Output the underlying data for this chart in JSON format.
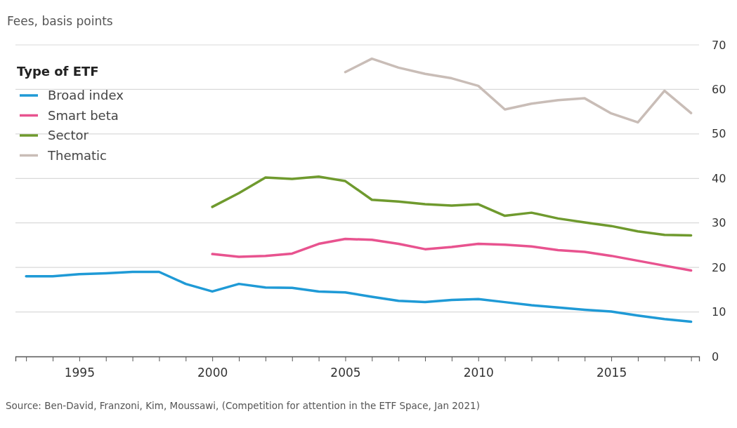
{
  "chart_data": {
    "type": "line",
    "ylabel": "Fees, basis points",
    "legend_title": "Type of ETF",
    "legend": "top left",
    "grid": "y",
    "line_style": "solid",
    "marker": "none",
    "x": [
      1993,
      1994,
      1995,
      1996,
      1997,
      1998,
      1999,
      2000,
      2001,
      2002,
      2003,
      2004,
      2005,
      2006,
      2007,
      2008,
      2009,
      2010,
      2011,
      2012,
      2013,
      2014,
      2015,
      2016,
      2017,
      2018
    ],
    "xlim": [
      1992.6,
      2018.3
    ],
    "xticks": [
      {
        "value": 1993,
        "label": null
      },
      {
        "value": 1994,
        "label": null
      },
      {
        "value": 1995,
        "label": "1995"
      },
      {
        "value": 1996,
        "label": null
      },
      {
        "value": 1997,
        "label": null
      },
      {
        "value": 1998,
        "label": null
      },
      {
        "value": 1999,
        "label": null
      },
      {
        "value": 2000,
        "label": "2000"
      },
      {
        "value": 2001,
        "label": null
      },
      {
        "value": 2002,
        "label": null
      },
      {
        "value": 2003,
        "label": null
      },
      {
        "value": 2004,
        "label": null
      },
      {
        "value": 2005,
        "label": "2005"
      },
      {
        "value": 2006,
        "label": null
      },
      {
        "value": 2007,
        "label": null
      },
      {
        "value": 2008,
        "label": null
      },
      {
        "value": 2009,
        "label": null
      },
      {
        "value": 2010,
        "label": "2010"
      },
      {
        "value": 2011,
        "label": null
      },
      {
        "value": 2012,
        "label": null
      },
      {
        "value": 2013,
        "label": null
      },
      {
        "value": 2014,
        "label": null
      },
      {
        "value": 2015,
        "label": "2015"
      },
      {
        "value": 2016,
        "label": null
      },
      {
        "value": 2017,
        "label": null
      },
      {
        "value": 2018,
        "label": null
      }
    ],
    "ylim": [
      0,
      70
    ],
    "yticks": [
      0,
      10,
      20,
      30,
      40,
      50,
      60,
      70
    ],
    "series": [
      {
        "name": "Broad index",
        "color": "#1f9ad6",
        "values": [
          18,
          18,
          18.5,
          18.7,
          19,
          19,
          16.3,
          14.6,
          16.3,
          15.5,
          15.4,
          14.6,
          14.4,
          13.4,
          12.5,
          12.2,
          12.7,
          12.9,
          12.2,
          11.5,
          11,
          10.5,
          10.1,
          9.2,
          8.4,
          7.8
        ]
      },
      {
        "name": "Smart beta",
        "color": "#e8538f",
        "values": [
          null,
          null,
          null,
          null,
          null,
          null,
          null,
          23,
          22.4,
          22.6,
          23.1,
          25.3,
          26.4,
          26.2,
          25.3,
          24.1,
          24.6,
          25.3,
          25.1,
          24.7,
          23.9,
          23.5,
          22.6,
          21.5,
          20.4,
          19.3
        ]
      },
      {
        "name": "Sector",
        "color": "#6f9a2e",
        "values": [
          null,
          null,
          null,
          null,
          null,
          null,
          null,
          33.6,
          36.7,
          40.2,
          39.9,
          40.4,
          39.4,
          35.2,
          34.8,
          34.2,
          33.9,
          34.2,
          31.6,
          32.3,
          31,
          30.1,
          29.3,
          28.1,
          27.3,
          27.2
        ]
      },
      {
        "name": "Thematic",
        "color": "#c9bdb7",
        "values": [
          null,
          null,
          null,
          null,
          null,
          null,
          null,
          null,
          null,
          null,
          null,
          null,
          63.9,
          66.9,
          64.9,
          63.5,
          62.5,
          60.8,
          55.5,
          56.8,
          57.6,
          58,
          54.6,
          52.6,
          59.7,
          54.7
        ]
      }
    ],
    "annotations": [
      "Source: Ben-David, Franzoni, Kim, Moussawi, (Competition for attention in the ETF Space, Jan 2021)"
    ]
  }
}
